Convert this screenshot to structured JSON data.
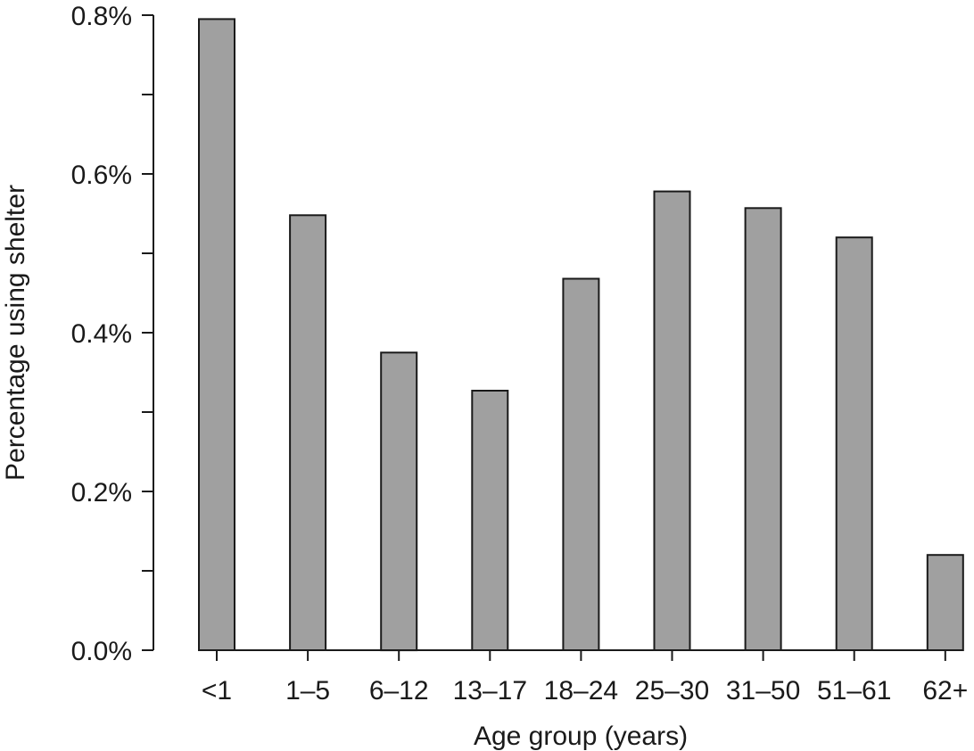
{
  "chart_data": {
    "type": "bar",
    "title": "",
    "xlabel": "Age group (years)",
    "ylabel": "Percentage using shelter",
    "categories": [
      "<1",
      "1–5",
      "6–12",
      "13–17",
      "18–24",
      "25–30",
      "31–50",
      "51–61",
      "62+"
    ],
    "values": [
      0.795,
      0.548,
      0.375,
      0.327,
      0.468,
      0.578,
      0.557,
      0.52,
      0.12
    ],
    "ylim": [
      0,
      0.8
    ],
    "yticks": [
      0.0,
      0.1,
      0.2,
      0.3,
      0.4,
      0.5,
      0.6,
      0.7,
      0.8
    ],
    "ytick_labels": {
      "0": "0.0%",
      "2": "0.2%",
      "4": "0.4%",
      "6": "0.6%",
      "8": "0.8%"
    },
    "grid": false,
    "legend": "none",
    "bar_color": "#a0a0a0",
    "bar_edge_color": "#1a1a1a"
  }
}
